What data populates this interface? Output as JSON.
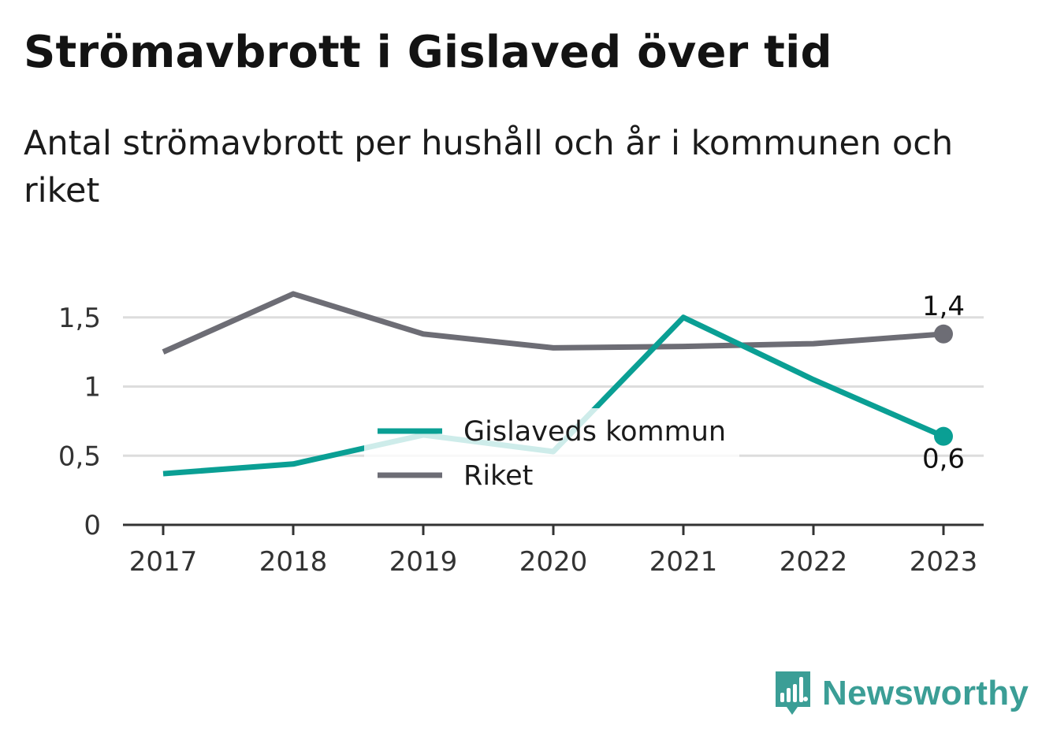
{
  "title": "Strömavbrott i Gislaved över tid",
  "subtitle": "Antal strömavbrott per hushåll och år i kommunen och riket",
  "brand": {
    "name": "Newsworthy",
    "icon": "bar-chart-speech-bubble-icon",
    "color": "#3b9e96"
  },
  "colors": {
    "kommun": "#0a9f94",
    "riket": "#6d6d75",
    "grid": "#dddddd",
    "axis": "#333333"
  },
  "chart_data": {
    "type": "line",
    "x": [
      "2017",
      "2018",
      "2019",
      "2020",
      "2021",
      "2022",
      "2023"
    ],
    "yticks": [
      0,
      0.5,
      1,
      1.5
    ],
    "ytick_labels": [
      "0",
      "0,5",
      "1",
      "1,5"
    ],
    "ylim": [
      0,
      1.7
    ],
    "grid": true,
    "legend_position": "center",
    "series": [
      {
        "name": "Gislaveds kommun",
        "values": [
          0.37,
          0.44,
          0.65,
          0.53,
          1.5,
          1.05,
          0.64
        ],
        "color": "#0a9f94",
        "end_label": "0,6"
      },
      {
        "name": "Riket",
        "values": [
          1.25,
          1.67,
          1.38,
          1.28,
          1.29,
          1.31,
          1.38
        ],
        "color": "#6d6d75",
        "end_label": "1,4"
      }
    ]
  }
}
